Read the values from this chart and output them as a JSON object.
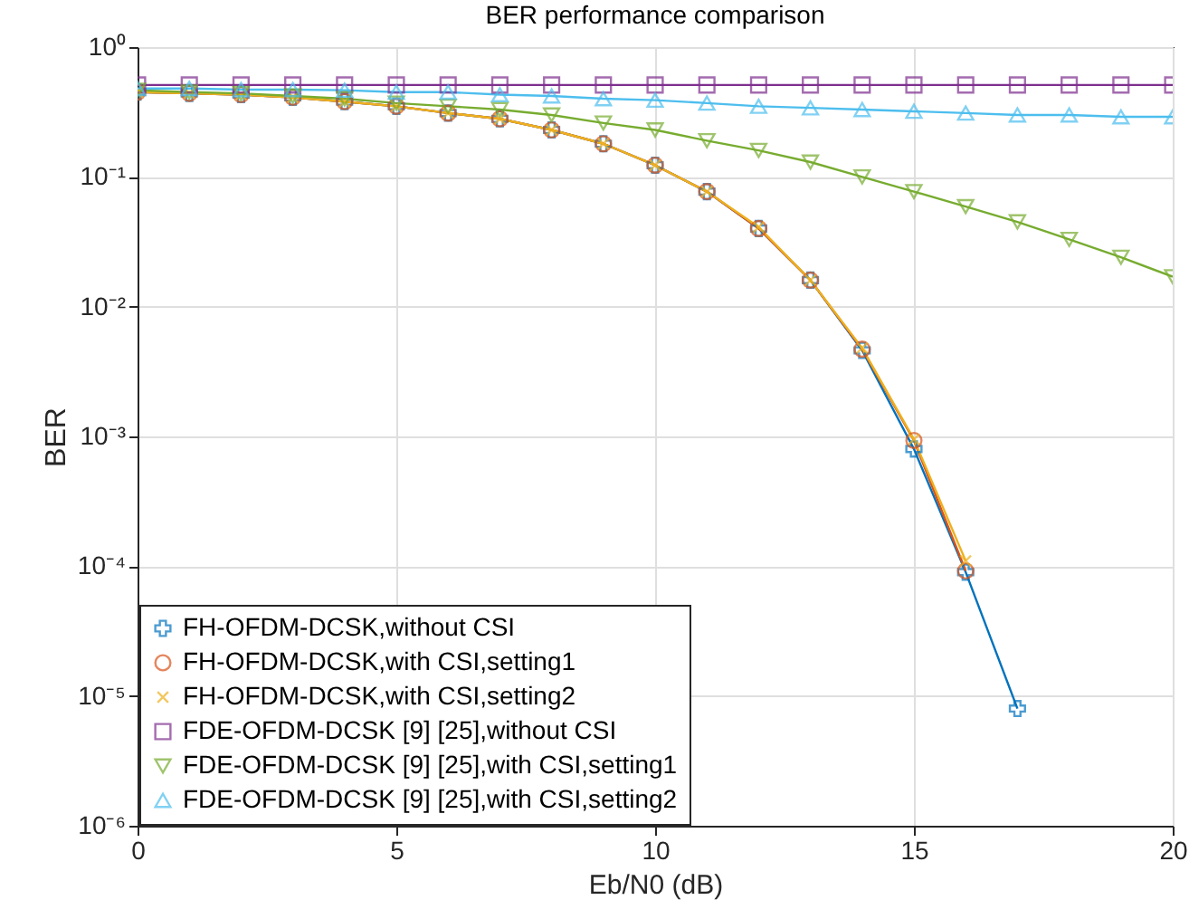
{
  "chart_data": {
    "type": "line",
    "title": "BER performance comparison",
    "xlabel": "Eb/N0 (dB)",
    "ylabel": "BER",
    "log": "y",
    "grid": true,
    "legend": "bottom left",
    "x": [
      0,
      1,
      2,
      3,
      4,
      5,
      6,
      7,
      8,
      9,
      10,
      11,
      12,
      13,
      14,
      15,
      16,
      17,
      18,
      19,
      20
    ],
    "xlim": [
      0,
      20
    ],
    "xticks": [
      0,
      5,
      10,
      15,
      20
    ],
    "ylim": [
      1e-06,
      1
    ],
    "yticks": [
      {
        "value": 1e-06,
        "label": "10⁻⁶"
      },
      {
        "value": 1e-05,
        "label": "10⁻⁵"
      },
      {
        "value": 0.0001,
        "label": "10⁻⁴"
      },
      {
        "value": 0.001,
        "label": "10⁻³"
      },
      {
        "value": 0.01,
        "label": "10⁻²"
      },
      {
        "value": 0.1,
        "label": "10⁻¹"
      },
      {
        "value": 1,
        "label": "10⁰"
      }
    ],
    "series": [
      {
        "name": "FH-OFDM-DCSK,without CSI",
        "color": "#0072bd",
        "marker": "plus",
        "values": [
          0.45,
          0.44,
          0.43,
          0.41,
          0.38,
          0.35,
          0.31,
          0.28,
          0.23,
          0.18,
          0.123,
          0.077,
          0.04,
          0.016,
          0.0046,
          0.0008,
          9e-05,
          8e-06,
          null,
          null,
          null
        ]
      },
      {
        "name": "FH-OFDM-DCSK,with CSI,setting1",
        "color": "#d95319",
        "marker": "circle",
        "values": [
          0.45,
          0.44,
          0.43,
          0.41,
          0.38,
          0.35,
          0.31,
          0.28,
          0.23,
          0.18,
          0.123,
          0.077,
          0.04,
          0.016,
          0.0047,
          0.00093,
          9.2e-05,
          null,
          null,
          null,
          null
        ]
      },
      {
        "name": "FH-OFDM-DCSK,with CSI,setting2",
        "color": "#edb120",
        "marker": "x",
        "values": [
          0.45,
          0.44,
          0.43,
          0.41,
          0.38,
          0.35,
          0.31,
          0.28,
          0.23,
          0.18,
          0.123,
          0.077,
          0.041,
          0.016,
          0.0048,
          0.00095,
          0.00011,
          null,
          null,
          null,
          null
        ]
      },
      {
        "name": "FDE-OFDM-DCSK [9] [25],without CSI",
        "color": "#7e2f8e",
        "marker": "square",
        "values": [
          0.51,
          0.51,
          0.51,
          0.51,
          0.51,
          0.51,
          0.51,
          0.51,
          0.51,
          0.51,
          0.51,
          0.51,
          0.51,
          0.51,
          0.51,
          0.51,
          0.51,
          0.51,
          0.51,
          0.51,
          0.51
        ]
      },
      {
        "name": "FDE-OFDM-DCSK [9] [25],with CSI,setting1",
        "color": "#77ac30",
        "marker": "triangle-down",
        "values": [
          0.465,
          0.45,
          0.44,
          0.42,
          0.4,
          0.37,
          0.35,
          0.33,
          0.3,
          0.26,
          0.23,
          0.19,
          0.16,
          0.13,
          0.1,
          0.077,
          0.059,
          0.045,
          0.033,
          0.024,
          0.017
        ]
      },
      {
        "name": "FDE-OFDM-DCSK [9] [25],with CSI,setting2",
        "color": "#4dbeee",
        "marker": "triangle-up",
        "values": [
          0.48,
          0.48,
          0.47,
          0.47,
          0.465,
          0.45,
          0.45,
          0.43,
          0.42,
          0.4,
          0.39,
          0.37,
          0.35,
          0.34,
          0.33,
          0.32,
          0.31,
          0.3,
          0.3,
          0.29,
          0.29
        ]
      }
    ]
  }
}
